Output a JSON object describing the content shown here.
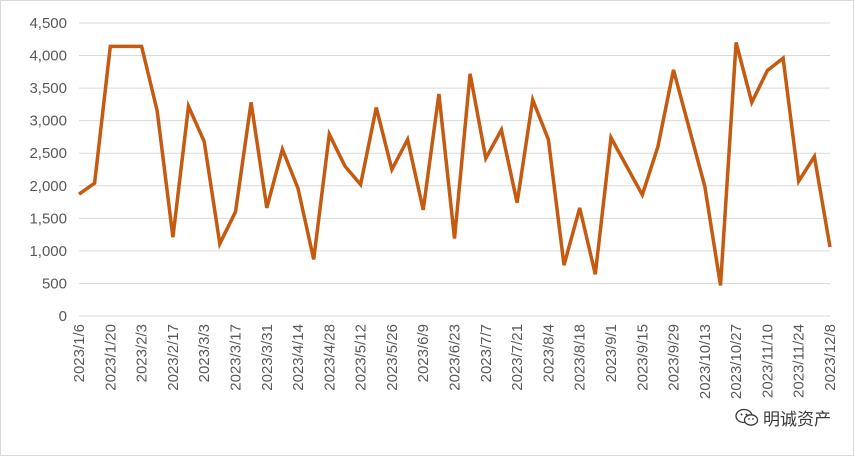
{
  "chart_data": {
    "type": "line",
    "title": "",
    "xlabel": "",
    "ylabel": "",
    "ylim": [
      0,
      4500
    ],
    "y_ticks": [
      "0",
      "500",
      "1,000",
      "1,500",
      "2,000",
      "2,500",
      "3,000",
      "3,500",
      "4,000",
      "4,500"
    ],
    "y_tick_values": [
      0,
      500,
      1000,
      1500,
      2000,
      2500,
      3000,
      3500,
      4000,
      4500
    ],
    "x_tick_labels": [
      "2023/1/6",
      "2023/1/20",
      "2023/2/3",
      "2023/2/17",
      "2023/3/3",
      "2023/3/17",
      "2023/3/31",
      "2023/4/14",
      "2023/4/28",
      "2023/5/12",
      "2023/5/26",
      "2023/6/9",
      "2023/6/23",
      "2023/7/7",
      "2023/7/21",
      "2023/8/4",
      "2023/8/18",
      "2023/9/1",
      "2023/9/15",
      "2023/9/29",
      "2023/10/13",
      "2023/10/27",
      "2023/11/10",
      "2023/11/24",
      "2023/12/8"
    ],
    "grid": true,
    "legend": "none",
    "series": [
      {
        "color": "#c55a11",
        "x": [
          "2023/1/6",
          "2023/1/13",
          "2023/1/20",
          "2023/1/27",
          "2023/2/3",
          "2023/2/10",
          "2023/2/17",
          "2023/2/24",
          "2023/3/3",
          "2023/3/10",
          "2023/3/17",
          "2023/3/24",
          "2023/3/31",
          "2023/4/7",
          "2023/4/14",
          "2023/4/21",
          "2023/4/28",
          "2023/5/5",
          "2023/5/12",
          "2023/5/19",
          "2023/5/26",
          "2023/6/2",
          "2023/6/9",
          "2023/6/16",
          "2023/6/23",
          "2023/6/30",
          "2023/7/7",
          "2023/7/14",
          "2023/7/21",
          "2023/7/28",
          "2023/8/4",
          "2023/8/11",
          "2023/8/18",
          "2023/8/25",
          "2023/9/1",
          "2023/9/15",
          "2023/9/22",
          "2023/9/29",
          "2023/10/13",
          "2023/10/20",
          "2023/10/27",
          "2023/11/3",
          "2023/11/10",
          "2023/11/17",
          "2023/11/24",
          "2023/12/1",
          "2023/12/8"
        ],
        "values": [
          1870,
          2040,
          4140,
          4140,
          4140,
          3150,
          1210,
          3220,
          2680,
          1110,
          1600,
          3280,
          1660,
          2560,
          1960,
          870,
          2790,
          2300,
          2020,
          3200,
          2250,
          2710,
          1630,
          3410,
          1190,
          3720,
          2420,
          2860,
          1740,
          3320,
          2710,
          780,
          1660,
          640,
          2740,
          1860,
          2600,
          3780,
          1990,
          470,
          4200,
          3280,
          3770,
          3960,
          2070,
          2450,
          1060
        ]
      }
    ]
  },
  "watermark": {
    "text": "明诚资产",
    "icon": "wechat-icon"
  }
}
